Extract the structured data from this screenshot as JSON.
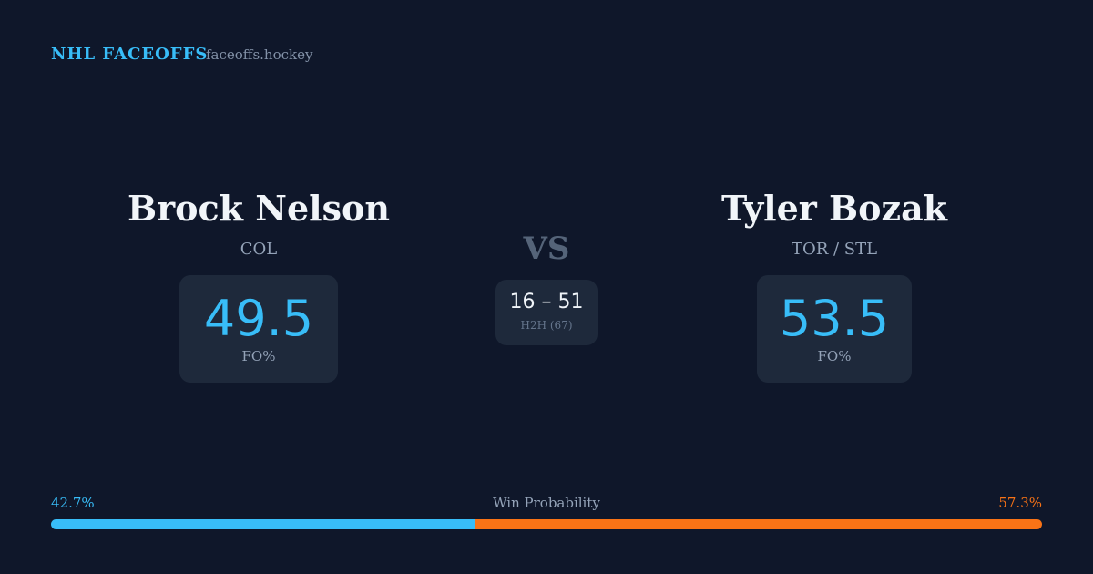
{
  "header": {
    "title": "NHL FACEOFFS",
    "site": "faceoffs.hockey"
  },
  "players": [
    {
      "name": "Brock Nelson",
      "team": "COL",
      "fo_pct": 49.5,
      "fo_label": "FO%"
    },
    {
      "name": "Tyler Bozak",
      "team": "TOR / STL",
      "fo_pct": 53.5,
      "fo_label": "FO%"
    }
  ],
  "versus": "VS",
  "h2h": {
    "record": "16 – 51",
    "label": "H2H (67)"
  },
  "win_probability": {
    "label": "Win Probability",
    "left": {
      "value": 42.7,
      "label": "42.7%",
      "color": "#38bdf8"
    },
    "right": {
      "value": 57.3,
      "label": "57.3%",
      "color": "#f97316"
    }
  }
}
